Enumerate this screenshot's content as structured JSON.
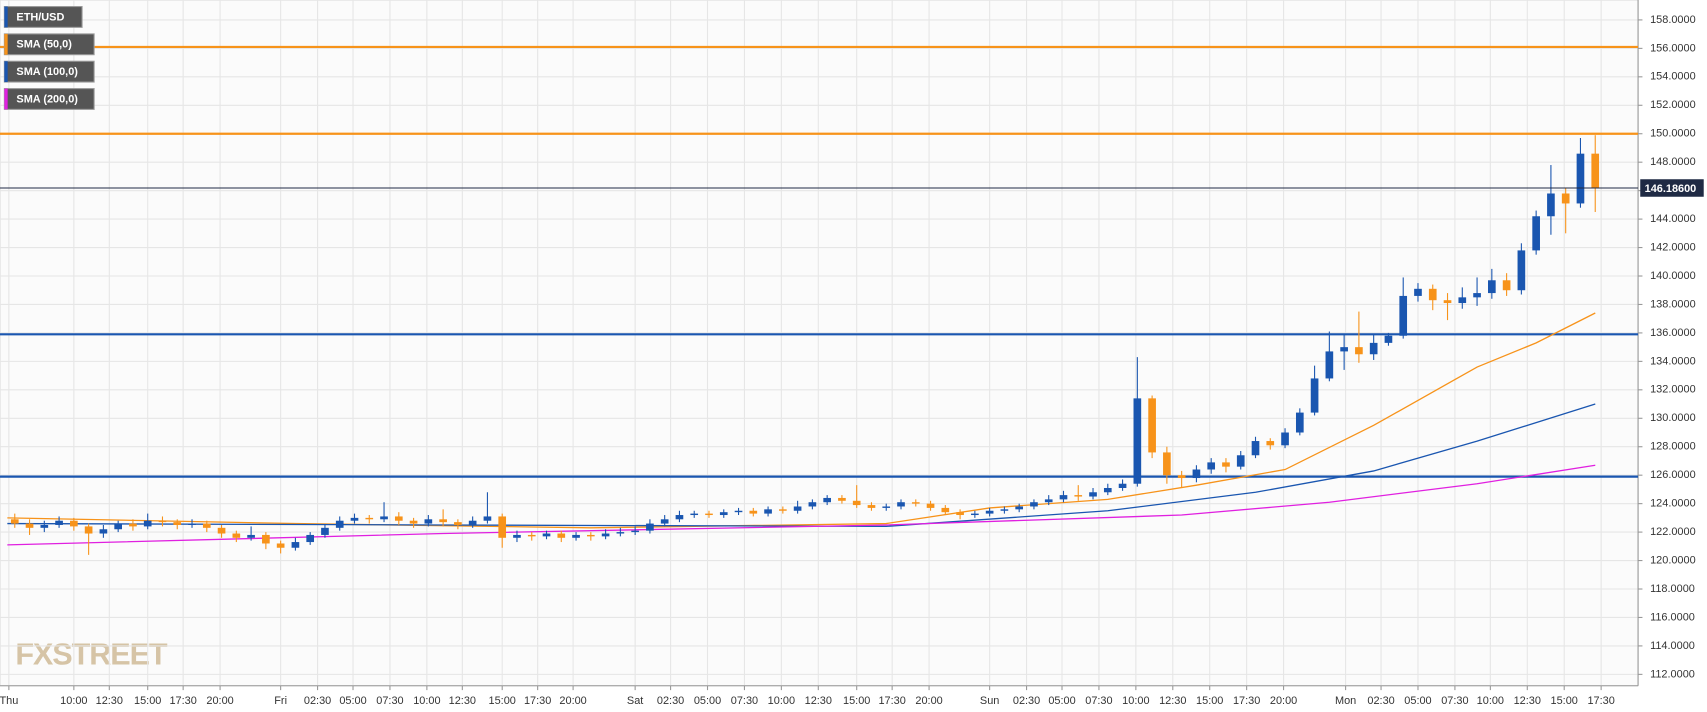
{
  "chart_data": {
    "type": "candlestick",
    "name": "ETH/USD",
    "legend_color": "#1a56b0",
    "up_color": "#1a56b0",
    "down_color": "#f7931a",
    "x": [
      1,
      2,
      3,
      4,
      5,
      6,
      7,
      8,
      9,
      10,
      11,
      12,
      13,
      14,
      15,
      16,
      17,
      18,
      19,
      20,
      21,
      22,
      23,
      24,
      25,
      26,
      27,
      28,
      29,
      30,
      31,
      32,
      33,
      34,
      35,
      36,
      37,
      38,
      39,
      40,
      41,
      42,
      43,
      44,
      45,
      46,
      47,
      48,
      49,
      50,
      51,
      52,
      53,
      54,
      55,
      56,
      57,
      58,
      59,
      60,
      61,
      62,
      63,
      64,
      65,
      66,
      67,
      68,
      69,
      70,
      71,
      72,
      73,
      74,
      75,
      76,
      77,
      78,
      79,
      80,
      81,
      82,
      83,
      84,
      85,
      86,
      87,
      88,
      89,
      90,
      91,
      92,
      93,
      94,
      95,
      96,
      97,
      98,
      99,
      100,
      101,
      102,
      103,
      104,
      105,
      106,
      107,
      108
    ],
    "open": [
      122.9,
      122.6,
      122.3,
      122.5,
      122.8,
      122.4,
      121.9,
      122.2,
      122.6,
      122.4,
      122.8,
      122.7,
      122.5,
      122.6,
      122.3,
      121.9,
      121.6,
      121.8,
      121.2,
      120.9,
      121.3,
      121.8,
      122.3,
      122.8,
      123.0,
      122.9,
      123.1,
      122.8,
      122.6,
      122.9,
      122.7,
      122.5,
      122.8,
      123.1,
      121.6,
      121.8,
      121.7,
      121.9,
      121.6,
      121.8,
      121.7,
      121.9,
      122.0,
      122.1,
      122.6,
      122.9,
      123.2,
      123.3,
      123.2,
      123.4,
      123.5,
      123.3,
      123.6,
      123.5,
      123.8,
      124.1,
      124.4,
      124.2,
      123.9,
      123.7,
      123.8,
      124.1,
      124.0,
      123.7,
      123.4,
      123.2,
      123.3,
      123.5,
      123.6,
      123.8,
      124.1,
      124.3,
      124.6,
      124.5,
      124.8,
      125.1,
      125.4,
      131.4,
      127.6,
      126.0,
      125.8,
      126.4,
      126.9,
      126.6,
      127.4,
      128.4,
      128.1,
      129.0,
      130.4,
      132.8,
      134.7,
      135.0,
      134.5,
      135.3,
      135.8,
      138.6,
      139.1,
      138.3,
      138.1,
      138.5,
      138.8,
      139.7,
      139.0,
      141.8,
      144.2,
      145.8,
      145.1,
      148.6
    ],
    "high": [
      123.3,
      122.9,
      122.8,
      123.1,
      123.0,
      122.6,
      122.5,
      122.8,
      122.9,
      123.3,
      123.1,
      122.9,
      122.9,
      122.8,
      122.5,
      122.1,
      122.4,
      122.0,
      121.4,
      121.6,
      122.0,
      122.5,
      123.1,
      123.3,
      123.2,
      124.1,
      123.4,
      123.0,
      123.2,
      123.6,
      122.9,
      123.1,
      124.8,
      123.3,
      122.1,
      122.0,
      122.1,
      122.1,
      122.0,
      122.0,
      122.2,
      122.3,
      122.4,
      122.9,
      123.2,
      123.5,
      123.5,
      123.5,
      123.6,
      123.7,
      123.7,
      123.8,
      123.8,
      124.2,
      124.3,
      124.6,
      124.6,
      125.3,
      124.1,
      124.0,
      124.3,
      124.3,
      124.2,
      123.9,
      123.6,
      123.5,
      123.7,
      123.8,
      124.0,
      124.3,
      124.6,
      124.9,
      125.3,
      125.1,
      125.4,
      125.7,
      134.3,
      131.6,
      128.0,
      126.3,
      126.7,
      127.2,
      127.2,
      127.7,
      128.7,
      128.6,
      129.3,
      130.7,
      133.7,
      136.1,
      135.9,
      137.5,
      135.9,
      136.0,
      139.9,
      139.5,
      139.4,
      138.8,
      139.2,
      139.9,
      140.5,
      140.2,
      142.3,
      144.6,
      147.8,
      146.2,
      149.7,
      149.9
    ],
    "low": [
      122.3,
      121.8,
      122.0,
      122.3,
      122.1,
      120.4,
      121.6,
      122.0,
      122.1,
      122.2,
      122.4,
      122.2,
      122.3,
      122.0,
      121.6,
      121.3,
      121.4,
      120.8,
      120.5,
      120.7,
      121.1,
      121.6,
      122.1,
      122.6,
      122.6,
      122.7,
      122.5,
      122.3,
      122.4,
      122.4,
      122.2,
      122.3,
      122.6,
      120.9,
      121.3,
      121.4,
      121.5,
      121.3,
      121.4,
      121.4,
      121.5,
      121.7,
      121.8,
      121.9,
      122.4,
      122.7,
      123.0,
      123.0,
      123.0,
      123.2,
      123.1,
      123.1,
      123.3,
      123.3,
      123.6,
      123.9,
      124.0,
      123.7,
      123.5,
      123.5,
      123.6,
      123.8,
      123.5,
      123.2,
      122.9,
      123.0,
      123.1,
      123.3,
      123.4,
      123.6,
      123.9,
      124.1,
      124.2,
      124.3,
      124.6,
      124.9,
      125.2,
      127.2,
      125.4,
      125.1,
      125.5,
      126.1,
      126.2,
      126.4,
      127.2,
      127.8,
      127.9,
      128.8,
      130.2,
      132.6,
      133.4,
      133.9,
      134.1,
      135.1,
      135.6,
      138.2,
      137.6,
      136.9,
      137.7,
      137.9,
      138.4,
      138.6,
      138.7,
      141.5,
      142.9,
      143.0,
      144.8,
      144.5
    ],
    "close": [
      122.6,
      122.3,
      122.5,
      122.8,
      122.4,
      121.9,
      122.2,
      122.6,
      122.4,
      122.8,
      122.7,
      122.5,
      122.6,
      122.3,
      121.9,
      121.6,
      121.8,
      121.2,
      120.9,
      121.3,
      121.8,
      122.3,
      122.8,
      123.0,
      122.9,
      123.1,
      122.8,
      122.6,
      122.9,
      122.7,
      122.5,
      122.8,
      123.1,
      121.6,
      121.8,
      121.7,
      121.9,
      121.6,
      121.8,
      121.7,
      121.9,
      122.0,
      122.1,
      122.6,
      122.9,
      123.2,
      123.3,
      123.2,
      123.4,
      123.5,
      123.3,
      123.6,
      123.5,
      123.8,
      124.1,
      124.4,
      124.2,
      123.9,
      123.7,
      123.8,
      124.1,
      124.0,
      123.7,
      123.4,
      123.2,
      123.3,
      123.5,
      123.6,
      123.8,
      124.1,
      124.3,
      124.6,
      124.5,
      124.8,
      125.1,
      125.4,
      131.4,
      127.6,
      126.0,
      125.8,
      126.4,
      126.9,
      126.6,
      127.4,
      128.4,
      128.1,
      129.0,
      130.4,
      132.8,
      134.7,
      135.0,
      134.5,
      135.3,
      135.8,
      138.6,
      139.1,
      138.3,
      138.1,
      138.5,
      138.8,
      139.7,
      139.0,
      141.8,
      144.2,
      145.8,
      145.1,
      148.6,
      146.19
    ],
    "lines": [
      {
        "name": "SMA (50,0)",
        "color": "#f7931a",
        "x": [
          0.5,
          20,
          40,
          60,
          67,
          75,
          81,
          87,
          93,
          100,
          104,
          108
        ],
        "values": [
          123.0,
          122.6,
          122.3,
          122.6,
          123.7,
          124.3,
          125.3,
          126.4,
          129.5,
          133.6,
          135.3,
          137.4
        ]
      },
      {
        "name": "SMA (100,0)",
        "color": "#1a56b0",
        "x": [
          0.5,
          30,
          60,
          75,
          85,
          93,
          100,
          108
        ],
        "values": [
          122.6,
          122.5,
          122.4,
          123.5,
          124.8,
          126.3,
          128.4,
          131.0
        ]
      },
      {
        "name": "SMA (200,0)",
        "color": "#e020e0",
        "x": [
          0.5,
          30,
          60,
          80,
          90,
          100,
          108
        ],
        "values": [
          121.1,
          121.9,
          122.5,
          123.2,
          124.1,
          125.4,
          126.7
        ]
      }
    ],
    "levels": [
      {
        "value": 156.1,
        "color": "#f7931a"
      },
      {
        "value": 150.0,
        "color": "#f7931a"
      },
      {
        "value": 135.9,
        "color": "#1a56b0"
      },
      {
        "value": 125.9,
        "color": "#1a56b0"
      }
    ],
    "last_price": {
      "value": 146.186,
      "label": "146.18600"
    },
    "watermark": "FXSTREET",
    "xlim": [
      0,
      110.9
    ],
    "ylim": [
      111.2,
      159.4
    ],
    "yticks": [
      {
        "value": 112,
        "label": "112.0000"
      },
      {
        "value": 114,
        "label": "114.0000"
      },
      {
        "value": 116,
        "label": "116.0000"
      },
      {
        "value": 118,
        "label": "118.0000"
      },
      {
        "value": 120,
        "label": "120.0000"
      },
      {
        "value": 122,
        "label": "122.0000"
      },
      {
        "value": 124,
        "label": "124.0000"
      },
      {
        "value": 126,
        "label": "126.0000"
      },
      {
        "value": 128,
        "label": "128.0000"
      },
      {
        "value": 130,
        "label": "130.0000"
      },
      {
        "value": 132,
        "label": "132.0000"
      },
      {
        "value": 134,
        "label": "134.0000"
      },
      {
        "value": 136,
        "label": "136.0000"
      },
      {
        "value": 138,
        "label": "138.0000"
      },
      {
        "value": 140,
        "label": "140.0000"
      },
      {
        "value": 142,
        "label": "142.0000"
      },
      {
        "value": 144,
        "label": "144.0000"
      },
      {
        "value": 146,
        "label": "146.0000"
      },
      {
        "value": 148,
        "label": "148.0000"
      },
      {
        "value": 150,
        "label": "150.0000"
      },
      {
        "value": 152,
        "label": "152.0000"
      },
      {
        "value": 154,
        "label": "154.0000"
      },
      {
        "value": 156,
        "label": "156.0000"
      },
      {
        "value": 158,
        "label": "158.0000"
      }
    ],
    "xticks": [
      {
        "value": 0.6,
        "label": "Thu"
      },
      {
        "value": 5.0,
        "label": "10:00"
      },
      {
        "value": 7.4,
        "label": "12:30"
      },
      {
        "value": 10.0,
        "label": "15:00"
      },
      {
        "value": 12.4,
        "label": "17:30"
      },
      {
        "value": 14.9,
        "label": "20:00"
      },
      {
        "value": 19.0,
        "label": "Fri"
      },
      {
        "value": 21.5,
        "label": "02:30"
      },
      {
        "value": 23.9,
        "label": "05:00"
      },
      {
        "value": 26.4,
        "label": "07:30"
      },
      {
        "value": 28.9,
        "label": "10:00"
      },
      {
        "value": 31.3,
        "label": "12:30"
      },
      {
        "value": 34.0,
        "label": "15:00"
      },
      {
        "value": 36.4,
        "label": "17:30"
      },
      {
        "value": 38.8,
        "label": "20:00"
      },
      {
        "value": 43.0,
        "label": "Sat"
      },
      {
        "value": 45.4,
        "label": "02:30"
      },
      {
        "value": 47.9,
        "label": "05:00"
      },
      {
        "value": 50.4,
        "label": "07:30"
      },
      {
        "value": 52.9,
        "label": "10:00"
      },
      {
        "value": 55.4,
        "label": "12:30"
      },
      {
        "value": 58.0,
        "label": "15:00"
      },
      {
        "value": 60.4,
        "label": "17:30"
      },
      {
        "value": 62.9,
        "label": "20:00"
      },
      {
        "value": 67.0,
        "label": "Sun"
      },
      {
        "value": 69.5,
        "label": "02:30"
      },
      {
        "value": 71.9,
        "label": "05:00"
      },
      {
        "value": 74.4,
        "label": "07:30"
      },
      {
        "value": 76.9,
        "label": "10:00"
      },
      {
        "value": 79.4,
        "label": "12:30"
      },
      {
        "value": 81.9,
        "label": "15:00"
      },
      {
        "value": 84.4,
        "label": "17:30"
      },
      {
        "value": 86.9,
        "label": "20:00"
      },
      {
        "value": 91.1,
        "label": "Mon"
      },
      {
        "value": 93.5,
        "label": "02:30"
      },
      {
        "value": 96.0,
        "label": "05:00"
      },
      {
        "value": 98.5,
        "label": "07:30"
      },
      {
        "value": 100.9,
        "label": "10:00"
      },
      {
        "value": 103.4,
        "label": "12:30"
      },
      {
        "value": 105.9,
        "label": "15:00"
      },
      {
        "value": 108.4,
        "label": "17:30"
      }
    ],
    "grid": true
  }
}
